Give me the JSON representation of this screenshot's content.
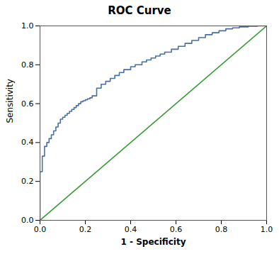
{
  "chart_data": {
    "type": "line",
    "title": "ROC Curve",
    "xlabel": "1 - Specificity",
    "ylabel": "Sensitivity",
    "series": [
      {
        "color": "#3c9e3c",
        "x": [
          0.0,
          1.0
        ],
        "values": [
          0.0,
          1.0
        ]
      },
      {
        "color": "#4a6fa5",
        "x": [
          0.0,
          0.0,
          0.0,
          0.0,
          0.01,
          0.01,
          0.01,
          0.01,
          0.02,
          0.02,
          0.02,
          0.02,
          0.03,
          0.03,
          0.03,
          0.04,
          0.04,
          0.04,
          0.05,
          0.05,
          0.05,
          0.06,
          0.06,
          0.06,
          0.07,
          0.07,
          0.07,
          0.08,
          0.08,
          0.08,
          0.09,
          0.09,
          0.09,
          0.1,
          0.1,
          0.11,
          0.11,
          0.12,
          0.12,
          0.13,
          0.13,
          0.14,
          0.14,
          0.15,
          0.15,
          0.16,
          0.16,
          0.17,
          0.17,
          0.18,
          0.18,
          0.19,
          0.19,
          0.2,
          0.2,
          0.21,
          0.21,
          0.22,
          0.22,
          0.23,
          0.23,
          0.25,
          0.25,
          0.27,
          0.27,
          0.29,
          0.29,
          0.31,
          0.31,
          0.33,
          0.33,
          0.35,
          0.35,
          0.37,
          0.37,
          0.4,
          0.4,
          0.42,
          0.42,
          0.45,
          0.45,
          0.47,
          0.47,
          0.49,
          0.49,
          0.51,
          0.51,
          0.53,
          0.53,
          0.55,
          0.55,
          0.58,
          0.58,
          0.61,
          0.61,
          0.64,
          0.64,
          0.67,
          0.67,
          0.7,
          0.7,
          0.73,
          0.73,
          0.76,
          0.76,
          0.79,
          0.79,
          0.82,
          0.82,
          0.85,
          0.85,
          0.88,
          0.88,
          0.92,
          0.92,
          0.96,
          0.96,
          1.0
        ],
        "values": [
          0.0,
          0.1,
          0.18,
          0.25,
          0.25,
          0.27,
          0.3,
          0.33,
          0.33,
          0.35,
          0.37,
          0.38,
          0.38,
          0.39,
          0.4,
          0.4,
          0.41,
          0.42,
          0.42,
          0.43,
          0.44,
          0.44,
          0.45,
          0.46,
          0.46,
          0.47,
          0.48,
          0.48,
          0.49,
          0.5,
          0.5,
          0.51,
          0.52,
          0.52,
          0.53,
          0.53,
          0.54,
          0.54,
          0.55,
          0.55,
          0.56,
          0.56,
          0.57,
          0.57,
          0.58,
          0.58,
          0.59,
          0.59,
          0.6,
          0.6,
          0.61,
          0.61,
          0.615,
          0.615,
          0.62,
          0.62,
          0.625,
          0.625,
          0.63,
          0.63,
          0.64,
          0.64,
          0.68,
          0.68,
          0.7,
          0.7,
          0.715,
          0.715,
          0.73,
          0.73,
          0.745,
          0.745,
          0.76,
          0.76,
          0.775,
          0.775,
          0.79,
          0.79,
          0.8,
          0.8,
          0.815,
          0.815,
          0.825,
          0.825,
          0.835,
          0.835,
          0.845,
          0.845,
          0.855,
          0.855,
          0.865,
          0.865,
          0.88,
          0.88,
          0.895,
          0.895,
          0.91,
          0.91,
          0.925,
          0.925,
          0.94,
          0.94,
          0.955,
          0.955,
          0.965,
          0.965,
          0.975,
          0.975,
          0.985,
          0.985,
          0.99,
          0.99,
          0.995,
          0.995,
          0.998,
          0.998,
          1.0,
          1.0
        ]
      }
    ],
    "xlim": [
      0.0,
      1.0
    ],
    "ylim": [
      0.0,
      1.0
    ],
    "xticks": [
      {
        "value": 0.0,
        "label": "0.0"
      },
      0.2,
      0.4,
      0.6,
      0.8,
      {
        "value": 1.0,
        "label": "1.0"
      }
    ],
    "yticks": [
      {
        "value": 0.0,
        "label": "0.0"
      },
      0.2,
      0.4,
      0.6,
      0.8,
      {
        "value": 1.0,
        "label": "1.0"
      }
    ],
    "grid": false
  }
}
